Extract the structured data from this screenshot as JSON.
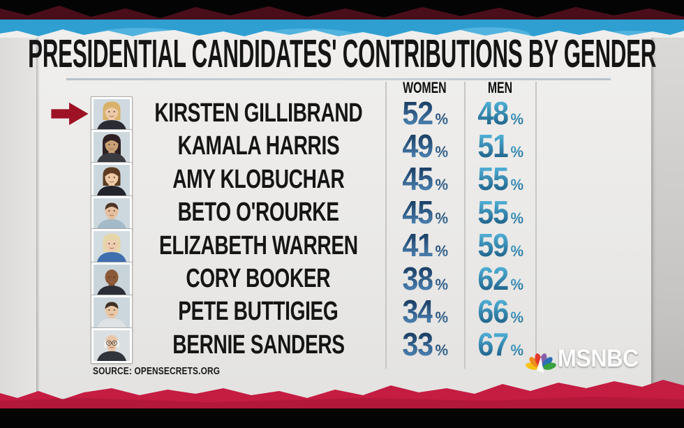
{
  "header": {
    "title": "PRESIDENTIAL CANDIDATES' CONTRIBUTIONS BY GENDER"
  },
  "table": {
    "columns": {
      "women": "WOMEN",
      "men": "MEN"
    },
    "percent_sign": "%"
  },
  "candidates": [
    {
      "name": "KIRSTEN GILLIBRAND",
      "women": "52",
      "men": "48",
      "highlighted": true,
      "avatar": {
        "bg": "#cfd9df",
        "skin": "#edc9a8",
        "hair": "#d8b269",
        "shirt": "#2b2b33",
        "style": "bob",
        "glasses": false
      }
    },
    {
      "name": "KAMALA HARRIS",
      "women": "49",
      "men": "51",
      "highlighted": false,
      "avatar": {
        "bg": "#cdd8de",
        "skin": "#c99f74",
        "hair": "#2e2023",
        "shirt": "#3a3a41",
        "style": "long",
        "glasses": false
      }
    },
    {
      "name": "AMY KLOBUCHAR",
      "women": "45",
      "men": "55",
      "highlighted": false,
      "avatar": {
        "bg": "#ccd7dd",
        "skin": "#eec9a6",
        "hair": "#5d3c23",
        "shirt": "#23232b",
        "style": "bob",
        "glasses": false
      }
    },
    {
      "name": "BETO O'ROURKE",
      "women": "45",
      "men": "55",
      "highlighted": false,
      "avatar": {
        "bg": "#cdd8de",
        "skin": "#e6c09e",
        "hair": "#4c3527",
        "shirt": "#a3bac7",
        "style": "short",
        "glasses": false
      }
    },
    {
      "name": "ELIZABETH WARREN",
      "women": "41",
      "men": "59",
      "highlighted": false,
      "avatar": {
        "bg": "#d3dce1",
        "skin": "#eecdb0",
        "hair": "#e5d7a9",
        "shirt": "#3f6fae",
        "style": "bob",
        "glasses": false
      }
    },
    {
      "name": "CORY BOOKER",
      "women": "38",
      "men": "62",
      "highlighted": false,
      "avatar": {
        "bg": "#c9d4da",
        "skin": "#8a5a38",
        "hair": "#3a2a1e",
        "shirt": "#2b2e36",
        "style": "bald",
        "glasses": false
      }
    },
    {
      "name": "PETE BUTTIGIEG",
      "women": "34",
      "men": "66",
      "highlighted": false,
      "avatar": {
        "bg": "#ccd7dd",
        "skin": "#e9c6a4",
        "hair": "#3f2f24",
        "shirt": "#dfe3e6",
        "style": "short",
        "glasses": false
      }
    },
    {
      "name": "BERNIE SANDERS",
      "women": "33",
      "men": "67",
      "highlighted": false,
      "avatar": {
        "bg": "#dadfe2",
        "skin": "#eac5a5",
        "hair": "#efefed",
        "shirt": "#32343c",
        "style": "balding",
        "glasses": true
      }
    }
  ],
  "source": {
    "label": "SOURCE: OPENSECRETS.ORG"
  },
  "branding": {
    "network": "MSNBC"
  },
  "colors": {
    "women-top": "#16395f",
    "women-bottom": "#4e85b5",
    "men-top": "#53b4da",
    "men-bottom": "#1d5f87",
    "arrow-red": "#9e1226",
    "stripe-blue": "#2f9fd2",
    "stripe-blue-light": "#5ab8e1",
    "stripe-red": "#c51c42",
    "stripe-red-dark": "#9d1533",
    "shard-red": "#4a0e1a"
  },
  "chart_data": {
    "type": "table",
    "title": "PRESIDENTIAL CANDIDATES' CONTRIBUTIONS BY GENDER",
    "columns": [
      "WOMEN",
      "MEN"
    ],
    "unit": "%",
    "rows": [
      {
        "candidate": "KIRSTEN GILLIBRAND",
        "women": 52,
        "men": 48
      },
      {
        "candidate": "KAMALA HARRIS",
        "women": 49,
        "men": 51
      },
      {
        "candidate": "AMY KLOBUCHAR",
        "women": 45,
        "men": 55
      },
      {
        "candidate": "BETO O'ROURKE",
        "women": 45,
        "men": 55
      },
      {
        "candidate": "ELIZABETH WARREN",
        "women": 41,
        "men": 59
      },
      {
        "candidate": "CORY BOOKER",
        "women": 38,
        "men": 62
      },
      {
        "candidate": "PETE BUTTIGIEG",
        "women": 34,
        "men": 66
      },
      {
        "candidate": "BERNIE SANDERS",
        "women": 33,
        "men": 67
      }
    ],
    "highlighted_row": "KIRSTEN GILLIBRAND",
    "source": "SOURCE: OPENSECRETS.ORG"
  }
}
